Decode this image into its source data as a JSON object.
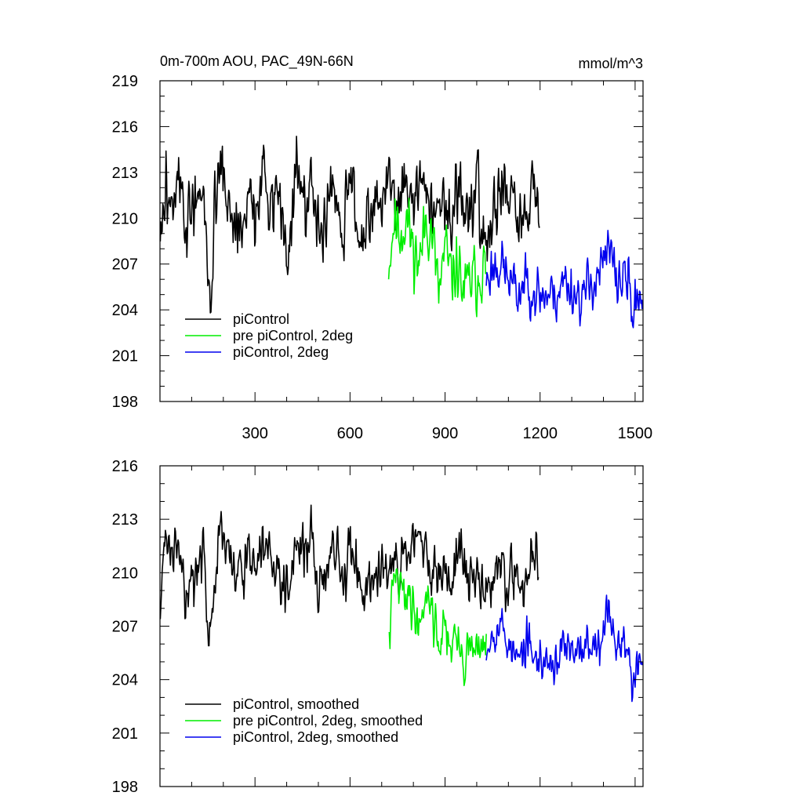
{
  "figure": {
    "left_title": "0m-700m AOU, PAC_49N-66N",
    "right_title": "mmol/m^3"
  },
  "chart_data": [
    {
      "type": "line",
      "id": "raw",
      "xlim": [
        0,
        1525
      ],
      "ylim": [
        198,
        219
      ],
      "x_ticks": [
        "300",
        "600",
        "900",
        "1200",
        "1500"
      ],
      "y_ticks": [
        "198",
        "201",
        "204",
        "207",
        "210",
        "213",
        "216",
        "219"
      ],
      "grid": false,
      "legend": "bottom-left",
      "series": [
        {
          "name": "piControl",
          "color": "#000000",
          "x_start": 1,
          "x_end": 1200,
          "anchors": [
            [
              0,
              208
            ],
            [
              20,
              212
            ],
            [
              40,
              211
            ],
            [
              60,
              213
            ],
            [
              80,
              209
            ],
            [
              100,
              211
            ],
            [
              120,
              210
            ],
            [
              140,
              212
            ],
            [
              150,
              206
            ],
            [
              155,
              204
            ],
            [
              170,
              209
            ],
            [
              190,
              214
            ],
            [
              210,
              212
            ],
            [
              230,
              210
            ],
            [
              260,
              209
            ],
            [
              280,
              212
            ],
            [
              300,
              210
            ],
            [
              320,
              213
            ],
            [
              340,
              211
            ],
            [
              360,
              212
            ],
            [
              380,
              211
            ],
            [
              400,
              208
            ],
            [
              420,
              212
            ],
            [
              440,
              213
            ],
            [
              460,
              211
            ],
            [
              480,
              212
            ],
            [
              500,
              209
            ],
            [
              520,
              210
            ],
            [
              540,
              212
            ],
            [
              560,
              211
            ],
            [
              580,
              209
            ],
            [
              600,
              213
            ],
            [
              620,
              210
            ],
            [
              640,
              208
            ],
            [
              660,
              211
            ],
            [
              680,
              212
            ],
            [
              700,
              210
            ],
            [
              720,
              213
            ],
            [
              740,
              212
            ],
            [
              760,
              211
            ],
            [
              780,
              212
            ],
            [
              800,
              211
            ],
            [
              820,
              213
            ],
            [
              840,
              212
            ],
            [
              860,
              211
            ],
            [
              880,
              210
            ],
            [
              900,
              211
            ],
            [
              920,
              210
            ],
            [
              940,
              213
            ],
            [
              960,
              211
            ],
            [
              980,
              210
            ],
            [
              1000,
              212
            ],
            [
              1020,
              209
            ],
            [
              1040,
              210
            ],
            [
              1060,
              211
            ],
            [
              1080,
              212
            ],
            [
              1100,
              210
            ],
            [
              1120,
              211
            ],
            [
              1140,
              209
            ],
            [
              1160,
              211
            ],
            [
              1180,
              212
            ],
            [
              1200,
              211
            ]
          ],
          "noise": 2.0,
          "seed": 3,
          "ymin": 203.8,
          "ymax": 216.1
        },
        {
          "name": "pre piControl, 2deg",
          "color": "#00ee00",
          "x_start": 722,
          "x_end": 1030,
          "anchors": [
            [
              722,
              207
            ],
            [
              740,
              210
            ],
            [
              760,
              209
            ],
            [
              780,
              210
            ],
            [
              800,
              208
            ],
            [
              820,
              207
            ],
            [
              840,
              210
            ],
            [
              860,
              209
            ],
            [
              880,
              205
            ],
            [
              900,
              208
            ],
            [
              920,
              206
            ],
            [
              940,
              207
            ],
            [
              960,
              205
            ],
            [
              980,
              206
            ],
            [
              1000,
              206
            ],
            [
              1020,
              207
            ],
            [
              1030,
              206
            ]
          ],
          "noise": 1.8,
          "seed": 11,
          "ymin": 202.3,
          "ymax": 212.7
        },
        {
          "name": "piControl, 2deg",
          "color": "#0000ee",
          "x_start": 1030,
          "x_end": 1525,
          "anchors": [
            [
              1030,
              206
            ],
            [
              1060,
              207
            ],
            [
              1080,
              207
            ],
            [
              1100,
              206
            ],
            [
              1130,
              205
            ],
            [
              1160,
              206
            ],
            [
              1190,
              205
            ],
            [
              1220,
              205
            ],
            [
              1250,
              205
            ],
            [
              1280,
              206
            ],
            [
              1310,
              205
            ],
            [
              1340,
              205
            ],
            [
              1370,
              206
            ],
            [
              1400,
              207
            ],
            [
              1420,
              208
            ],
            [
              1440,
              206
            ],
            [
              1460,
              206
            ],
            [
              1480,
              206
            ],
            [
              1495,
              203
            ],
            [
              1505,
              205
            ],
            [
              1525,
              205
            ]
          ],
          "noise": 1.5,
          "seed": 23,
          "ymin": 198.4,
          "ymax": 210.2
        }
      ]
    },
    {
      "type": "line",
      "id": "smoothed",
      "xlim": [
        0,
        1525
      ],
      "ylim": [
        198,
        216
      ],
      "x_ticks": [],
      "y_ticks": [
        "198",
        "201",
        "204",
        "207",
        "210",
        "213",
        "216"
      ],
      "grid": false,
      "legend": "bottom-left",
      "series": [
        {
          "name": "piControl, smoothed",
          "color": "#000000",
          "x_start": 1,
          "x_end": 1195,
          "anchors": [
            [
              0,
              208.5
            ],
            [
              20,
              212
            ],
            [
              40,
              211
            ],
            [
              60,
              211
            ],
            [
              80,
              209
            ],
            [
              100,
              210
            ],
            [
              120,
              210
            ],
            [
              140,
              211
            ],
            [
              150,
              207
            ],
            [
              155,
              206
            ],
            [
              170,
              209
            ],
            [
              190,
              213
            ],
            [
              210,
              211
            ],
            [
              230,
              210
            ],
            [
              260,
              210
            ],
            [
              280,
              211
            ],
            [
              300,
              210
            ],
            [
              320,
              212
            ],
            [
              340,
              211
            ],
            [
              360,
              211
            ],
            [
              380,
              210
            ],
            [
              400,
              209
            ],
            [
              420,
              211
            ],
            [
              440,
              212
            ],
            [
              460,
              211
            ],
            [
              480,
              212
            ],
            [
              500,
              209
            ],
            [
              520,
              210
            ],
            [
              540,
              211
            ],
            [
              560,
              211
            ],
            [
              580,
              209
            ],
            [
              600,
              212
            ],
            [
              620,
              210
            ],
            [
              640,
              209
            ],
            [
              660,
              210
            ],
            [
              680,
              210
            ],
            [
              700,
              210
            ],
            [
              720,
              211
            ],
            [
              740,
              211
            ],
            [
              760,
              210
            ],
            [
              780,
              211
            ],
            [
              800,
              211
            ],
            [
              820,
              212
            ],
            [
              840,
              211
            ],
            [
              860,
              210
            ],
            [
              880,
              210
            ],
            [
              900,
              210
            ],
            [
              920,
              209
            ],
            [
              940,
              212
            ],
            [
              960,
              210
            ],
            [
              980,
              210
            ],
            [
              1000,
              210
            ],
            [
              1020,
              209
            ],
            [
              1040,
              209
            ],
            [
              1060,
              210
            ],
            [
              1080,
              211
            ],
            [
              1100,
              209
            ],
            [
              1120,
              210
            ],
            [
              1140,
              209
            ],
            [
              1160,
              210
            ],
            [
              1180,
              212
            ],
            [
              1195,
              210
            ]
          ],
          "noise": 1.3,
          "seed": 31,
          "ymin": 205.9,
          "ymax": 214.7
        },
        {
          "name": "pre piControl, 2deg, smoothed",
          "color": "#00ee00",
          "x_start": 722,
          "x_end": 1030,
          "anchors": [
            [
              722,
              206
            ],
            [
              740,
              210
            ],
            [
              760,
              209
            ],
            [
              780,
              209
            ],
            [
              800,
              208
            ],
            [
              820,
              207
            ],
            [
              840,
              209
            ],
            [
              860,
              208
            ],
            [
              880,
              206
            ],
            [
              900,
              207
            ],
            [
              920,
              206
            ],
            [
              940,
              206
            ],
            [
              960,
              205
            ],
            [
              980,
              206
            ],
            [
              1000,
              206
            ],
            [
              1020,
              206
            ],
            [
              1030,
              206
            ]
          ],
          "noise": 1.1,
          "seed": 41,
          "ymin": 203.4,
          "ymax": 211.1
        },
        {
          "name": "piControl, 2deg, smoothed",
          "color": "#0000ee",
          "x_start": 1030,
          "x_end": 1525,
          "anchors": [
            [
              1030,
              206
            ],
            [
              1060,
              207
            ],
            [
              1080,
              207
            ],
            [
              1100,
              206
            ],
            [
              1130,
              205
            ],
            [
              1160,
              206
            ],
            [
              1190,
              205
            ],
            [
              1220,
              205
            ],
            [
              1250,
              205
            ],
            [
              1280,
              206
            ],
            [
              1310,
              205
            ],
            [
              1340,
              206
            ],
            [
              1370,
              206
            ],
            [
              1400,
              207
            ],
            [
              1420,
              208
            ],
            [
              1440,
              206
            ],
            [
              1460,
              206
            ],
            [
              1480,
              206
            ],
            [
              1495,
              203
            ],
            [
              1505,
              205
            ],
            [
              1525,
              205
            ]
          ],
          "noise": 1.0,
          "seed": 53,
          "ymin": 200.9,
          "ymax": 208.9
        }
      ]
    }
  ]
}
